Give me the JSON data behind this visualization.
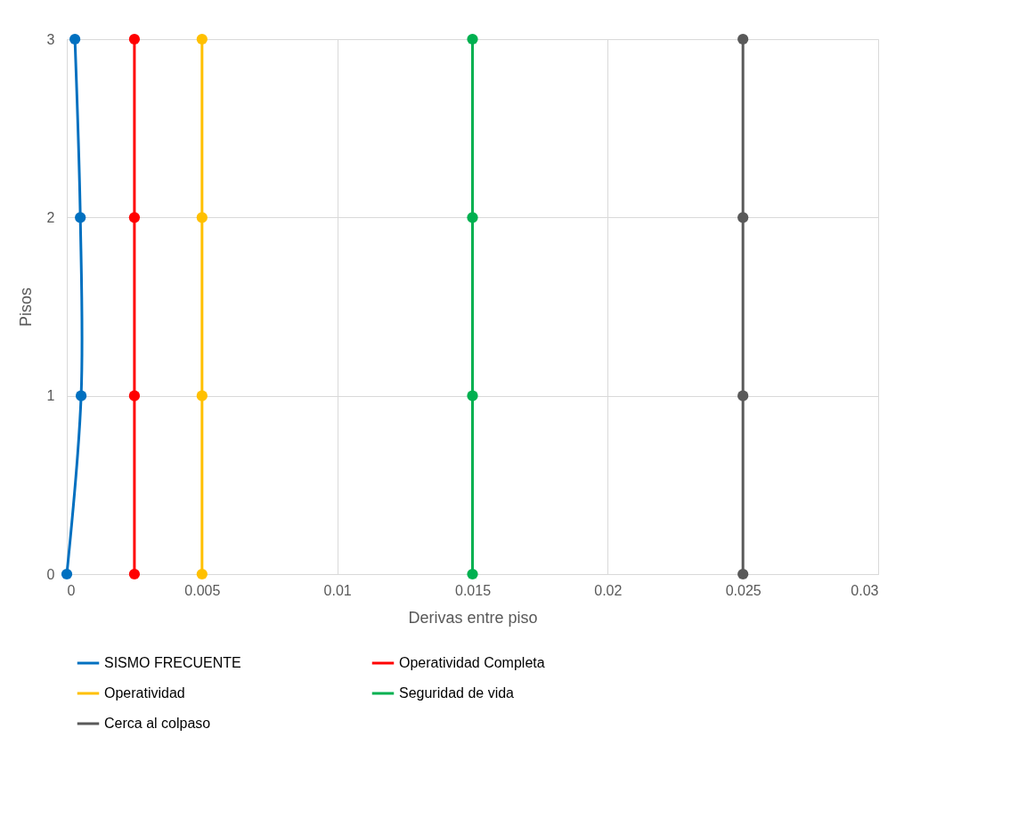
{
  "chart_data": {
    "type": "line",
    "xlabel": "Derivas entre piso",
    "ylabel": "Pisos",
    "series": [
      {
        "name": "SISMO FRECUENTE",
        "color": "#0070c0",
        "x": [
          0,
          0.00053,
          0.0005,
          0.0003
        ],
        "values": [
          0,
          1,
          2,
          3
        ]
      },
      {
        "name": "Operatividad Completa",
        "color": "#ff0000",
        "x": [
          0.0025,
          0.0025,
          0.0025,
          0.0025
        ],
        "values": [
          0,
          1,
          2,
          3
        ]
      },
      {
        "name": "Operatividad",
        "color": "#ffc000",
        "x": [
          0.005,
          0.005,
          0.005,
          0.005
        ],
        "values": [
          0,
          1,
          2,
          3
        ]
      },
      {
        "name": "Seguridad de vida",
        "color": "#00b050",
        "x": [
          0.015,
          0.015,
          0.015,
          0.015
        ],
        "values": [
          0,
          1,
          2,
          3
        ]
      },
      {
        "name": "Cerca al colpaso",
        "color": "#595959",
        "x": [
          0.025,
          0.025,
          0.025,
          0.025
        ],
        "values": [
          0,
          1,
          2,
          3
        ]
      }
    ],
    "xlim": [
      0,
      0.03
    ],
    "xticks": [
      0,
      0.005,
      0.01,
      0.015,
      0.02,
      0.025,
      0.03
    ],
    "ylim": [
      0,
      3
    ],
    "yticks": [
      0,
      1,
      2,
      3
    ],
    "grid": true,
    "legend": "bottom",
    "marker": "circle",
    "line_style": "solid"
  }
}
